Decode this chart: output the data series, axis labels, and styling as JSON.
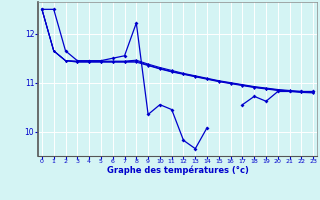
{
  "xlabel": "Graphe des températures (°c)",
  "background_color": "#d4f4f4",
  "line_color": "#0000cc",
  "x_ticks": [
    0,
    1,
    2,
    3,
    4,
    5,
    6,
    7,
    8,
    9,
    10,
    11,
    12,
    13,
    14,
    15,
    16,
    17,
    18,
    19,
    20,
    21,
    22,
    23
  ],
  "y_ticks": [
    10,
    11,
    12
  ],
  "ylim": [
    9.5,
    12.65
  ],
  "xlim": [
    -0.3,
    23.3
  ],
  "series": {
    "main": [
      12.5,
      12.5,
      11.65,
      11.45,
      11.45,
      11.45,
      11.5,
      11.55,
      12.22,
      10.35,
      10.55,
      10.45,
      9.82,
      9.65,
      10.08,
      null,
      null,
      10.55,
      10.72,
      10.62,
      10.82,
      10.82,
      10.82,
      10.82
    ],
    "line1": [
      12.5,
      11.65,
      11.45,
      11.42,
      11.42,
      11.42,
      11.42,
      11.42,
      11.42,
      11.35,
      11.28,
      11.22,
      11.17,
      11.12,
      11.07,
      11.02,
      10.98,
      10.94,
      10.9,
      10.87,
      10.84,
      10.82,
      10.8,
      10.79
    ],
    "line2": [
      12.5,
      11.65,
      11.45,
      11.44,
      11.44,
      11.44,
      11.44,
      11.44,
      11.46,
      11.38,
      11.31,
      11.25,
      11.19,
      11.14,
      11.09,
      11.04,
      11.0,
      10.96,
      10.92,
      10.89,
      10.86,
      10.84,
      10.82,
      10.81
    ],
    "line3": [
      12.5,
      11.65,
      11.45,
      11.43,
      11.43,
      11.43,
      11.43,
      11.43,
      11.44,
      11.36,
      11.29,
      11.23,
      11.18,
      11.13,
      11.08,
      11.03,
      10.99,
      10.95,
      10.91,
      10.88,
      10.85,
      10.83,
      10.81,
      10.8
    ]
  }
}
